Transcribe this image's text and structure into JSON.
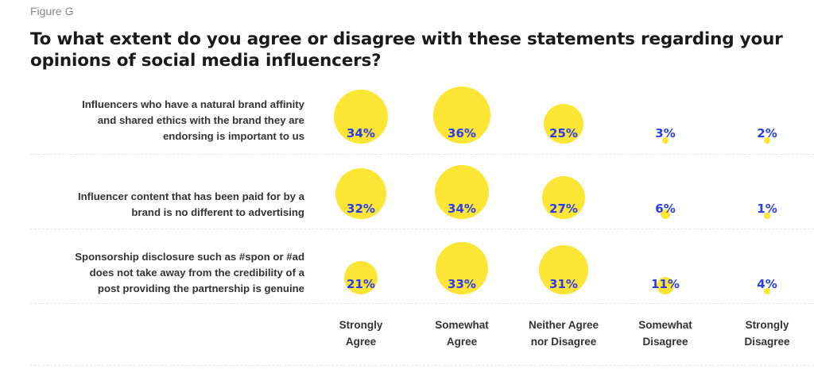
{
  "figure_label": "Figure G",
  "chart_data": {
    "type": "bubble",
    "title": "To what extent do you agree or disagree with these statements regarding your opinions of social media influencers?",
    "categories": [
      "Strongly Agree",
      "Somewhat Agree",
      "Neither Agree nor Disagree",
      "Somewhat Disagree",
      "Strongly Disagree"
    ],
    "category_lines": [
      [
        "Strongly",
        "Agree"
      ],
      [
        "Somewhat",
        "Agree"
      ],
      [
        "Neither Agree",
        "nor Disagree"
      ],
      [
        "Somewhat",
        "Disagree"
      ],
      [
        "Strongly",
        "Disagree"
      ]
    ],
    "series": [
      {
        "name": "Influencers who have a natural brand affinity and shared ethics with the brand they are endorsing is important to us",
        "lines": [
          "Influencers who have a natural brand affinity",
          "and shared ethics with the brand they are",
          "endorsing is important to us"
        ],
        "values": [
          34,
          36,
          25,
          3,
          2
        ]
      },
      {
        "name": "Influencer content that has been paid for by a brand is no different to advertising",
        "lines": [
          "Influencer content that has been paid for by a",
          "brand is no different to advertising"
        ],
        "values": [
          32,
          34,
          27,
          6,
          1
        ]
      },
      {
        "name": "Sponsorship disclosure such as #spon or #ad does not take away from the credibility of a post providing the partnership is genuine",
        "lines": [
          "Sponsorship disclosure such as #spon or #ad",
          "does not take away from the credibility of a",
          "post providing the partnership is genuine"
        ],
        "values": [
          21,
          33,
          31,
          11,
          4
        ]
      }
    ],
    "value_format": "percent",
    "colors": {
      "bubble": "#fde535",
      "label": "#2a3cf0"
    }
  }
}
